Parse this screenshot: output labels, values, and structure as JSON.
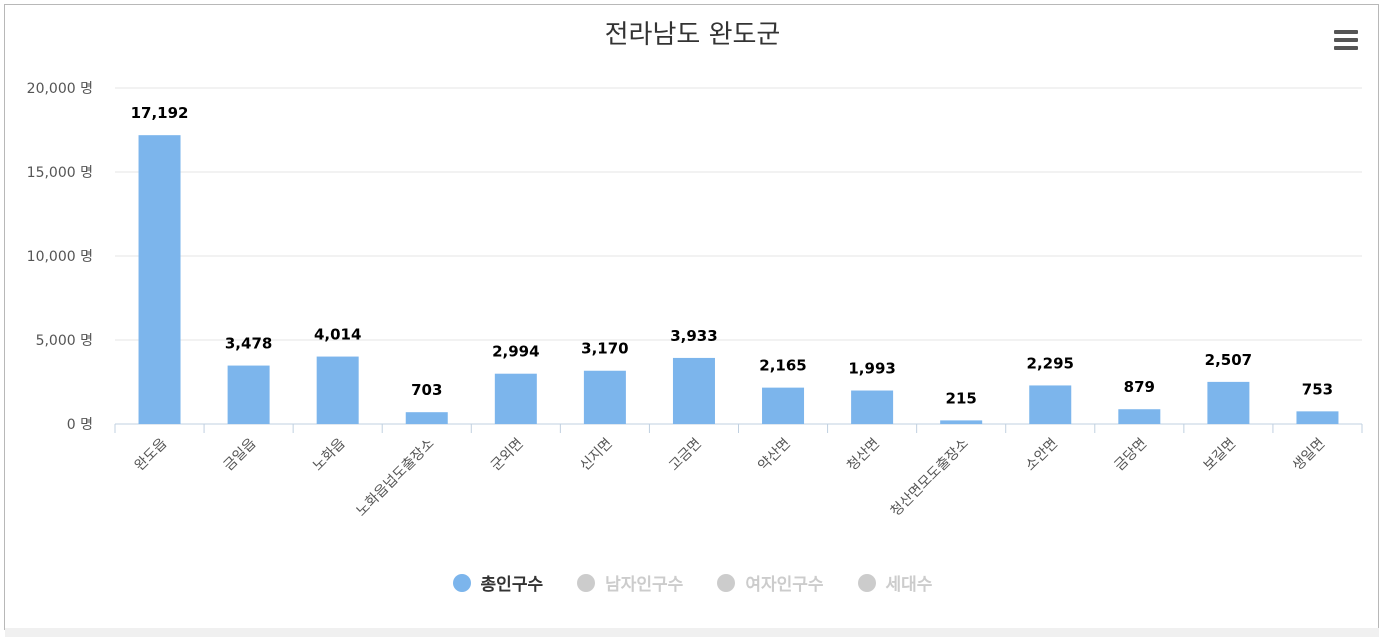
{
  "colors": {
    "active": "#7cb5ec",
    "inactive": "#cccccc",
    "active_text": "#333333",
    "inactive_text": "#cccccc"
  },
  "icons": {
    "menu": "hamburger-menu-icon"
  },
  "chart_data": {
    "type": "bar",
    "title": "전라남도 완도군",
    "xlabel": "",
    "ylabel": "",
    "ylim": [
      0,
      20000
    ],
    "yticks": [
      {
        "value": 0,
        "label": "0 명"
      },
      {
        "value": 5000,
        "label": "5,000 명"
      },
      {
        "value": 10000,
        "label": "10,000 명"
      },
      {
        "value": 15000,
        "label": "15,000 명"
      },
      {
        "value": 20000,
        "label": "20,000 명"
      }
    ],
    "grid": true,
    "legend_position": "bottom-center",
    "categories": [
      "완도읍",
      "금일읍",
      "노화읍",
      "노화읍넙도출장소",
      "군외면",
      "신지면",
      "고금면",
      "약산면",
      "청산면",
      "청산면모도출장소",
      "소안면",
      "금당면",
      "보길면",
      "생일면"
    ],
    "series": [
      {
        "name": "총인구수",
        "visible": true,
        "color": "#7cb5ec",
        "values": [
          17192,
          3478,
          4014,
          703,
          2994,
          3170,
          3933,
          2165,
          1993,
          215,
          2295,
          879,
          2507,
          753
        ],
        "data_labels": [
          "17,192",
          "3,478",
          "4,014",
          "703",
          "2,994",
          "3,170",
          "3,933",
          "2,165",
          "1,993",
          "215",
          "2,295",
          "879",
          "2,507",
          "753"
        ]
      },
      {
        "name": "남자인구수",
        "visible": false,
        "color": "#cccccc"
      },
      {
        "name": "여자인구수",
        "visible": false,
        "color": "#cccccc"
      },
      {
        "name": "세대수",
        "visible": false,
        "color": "#cccccc"
      }
    ]
  }
}
